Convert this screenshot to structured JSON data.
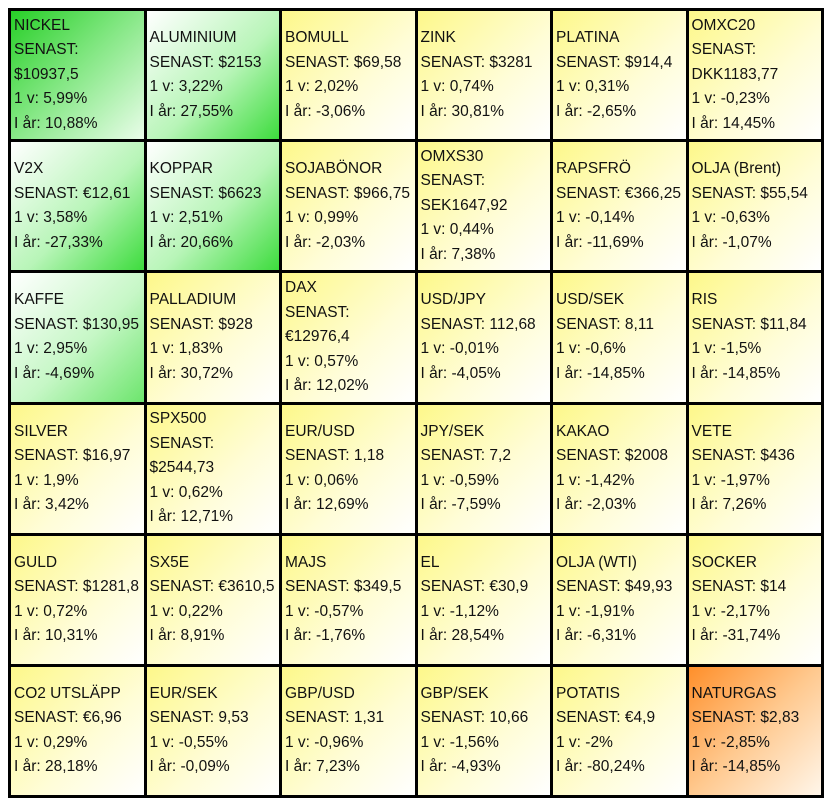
{
  "colors": {
    "positive_strong": "#27cf27",
    "positive": "#3ddc3d",
    "neutral": "#fdf88a",
    "negative_strong": "#ff8f2a",
    "border": "#000000"
  },
  "labels": {
    "last": "SENAST:",
    "week": "1 v:",
    "year": "I år:"
  },
  "cells": [
    {
      "name": "NICKEL",
      "last": "$10937,5",
      "week": "5,99%",
      "year": "10,88%",
      "tone": "green-strong"
    },
    {
      "name": "ALUMINIUM",
      "last": "$2153",
      "week": "3,22%",
      "year": "27,55%",
      "tone": "green"
    },
    {
      "name": "BOMULL",
      "last": "$69,58",
      "week": "2,02%",
      "year": "-3,06%",
      "tone": "yellow"
    },
    {
      "name": "ZINK",
      "last": "$3281",
      "week": "0,74%",
      "year": "30,81%",
      "tone": "yellow"
    },
    {
      "name": "PLATINA",
      "last": "$914,4",
      "week": "0,31%",
      "year": "-2,65%",
      "tone": "yellow"
    },
    {
      "name": "OMXC20",
      "last": "DKK1183,77",
      "week": "-0,23%",
      "year": "14,45%",
      "tone": "yellow"
    },
    {
      "name": "V2X",
      "last": "€12,61",
      "week": "3,58%",
      "year": "-27,33%",
      "tone": "green"
    },
    {
      "name": "KOPPAR",
      "last": "$6623",
      "week": "2,51%",
      "year": "20,66%",
      "tone": "green"
    },
    {
      "name": "SOJABÖNOR",
      "last": "$966,75",
      "week": "0,99%",
      "year": "-2,03%",
      "tone": "yellow"
    },
    {
      "name": "OMXS30",
      "last": "SEK1647,92",
      "week": "0,44%",
      "year": "7,38%",
      "tone": "yellow"
    },
    {
      "name": "RAPSFRÖ",
      "last": "€366,25",
      "week": "-0,14%",
      "year": "-11,69%",
      "tone": "yellow"
    },
    {
      "name": "OLJA (Brent)",
      "last": "$55,54",
      "week": "-0,63%",
      "year": "-1,07%",
      "tone": "yellow"
    },
    {
      "name": "KAFFE",
      "last": "$130,95",
      "week": "2,95%",
      "year": "-4,69%",
      "tone": "green-light"
    },
    {
      "name": "PALLADIUM",
      "last": "$928",
      "week": "1,83%",
      "year": "30,72%",
      "tone": "yellow"
    },
    {
      "name": "DAX",
      "last": "€12976,4",
      "week": "0,57%",
      "year": "12,02%",
      "tone": "yellow"
    },
    {
      "name": "USD/JPY",
      "last": "112,68",
      "week": "-0,01%",
      "year": "-4,05%",
      "tone": "yellow"
    },
    {
      "name": "USD/SEK",
      "last": "8,11",
      "week": "-0,6%",
      "year": "-14,85%",
      "tone": "yellow"
    },
    {
      "name": "RIS",
      "last": "$11,84",
      "week": "-1,5%",
      "year": "-14,85%",
      "tone": "yellow"
    },
    {
      "name": "SILVER",
      "last": "$16,97",
      "week": "1,9%",
      "year": "3,42%",
      "tone": "yellow"
    },
    {
      "name": "SPX500",
      "last": "$2544,73",
      "week": "0,62%",
      "year": "12,71%",
      "tone": "yellow"
    },
    {
      "name": "EUR/USD",
      "last": "1,18",
      "week": "0,06%",
      "year": "12,69%",
      "tone": "yellow"
    },
    {
      "name": "JPY/SEK",
      "last": "7,2",
      "week": "-0,59%",
      "year": "-7,59%",
      "tone": "yellow"
    },
    {
      "name": "KAKAO",
      "last": "$2008",
      "week": "-1,42%",
      "year": "-2,03%",
      "tone": "yellow"
    },
    {
      "name": "VETE",
      "last": "$436",
      "week": "-1,97%",
      "year": "7,26%",
      "tone": "yellow"
    },
    {
      "name": "GULD",
      "last": "$1281,8",
      "week": "0,72%",
      "year": "10,31%",
      "tone": "yellow"
    },
    {
      "name": "SX5E",
      "last": "€3610,5",
      "week": "0,22%",
      "year": "8,91%",
      "tone": "yellow"
    },
    {
      "name": "MAJS",
      "last": "$349,5",
      "week": "-0,57%",
      "year": "-1,76%",
      "tone": "yellow"
    },
    {
      "name": "EL",
      "last": "€30,9",
      "week": "-1,12%",
      "year": "28,54%",
      "tone": "yellow"
    },
    {
      "name": "OLJA (WTI)",
      "last": "$49,93",
      "week": "-1,91%",
      "year": "-6,31%",
      "tone": "yellow"
    },
    {
      "name": "SOCKER",
      "last": "$14",
      "week": "-2,17%",
      "year": "-31,74%",
      "tone": "yellow"
    },
    {
      "name": "CO2 UTSLÄPP",
      "last": "€6,96",
      "week": "0,29%",
      "year": "28,18%",
      "tone": "yellow"
    },
    {
      "name": "EUR/SEK",
      "last": "9,53",
      "week": "-0,55%",
      "year": "-0,09%",
      "tone": "yellow"
    },
    {
      "name": "GBP/USD",
      "last": "1,31",
      "week": "-0,96%",
      "year": "7,23%",
      "tone": "yellow"
    },
    {
      "name": "GBP/SEK",
      "last": "10,66",
      "week": "-1,56%",
      "year": "-4,93%",
      "tone": "yellow"
    },
    {
      "name": "POTATIS",
      "last": "€4,9",
      "week": "-2%",
      "year": "-80,24%",
      "tone": "yellow"
    },
    {
      "name": "NATURGAS",
      "last": "$2,83",
      "week": "-2,85%",
      "year": "-14,85%",
      "tone": "orange"
    }
  ]
}
